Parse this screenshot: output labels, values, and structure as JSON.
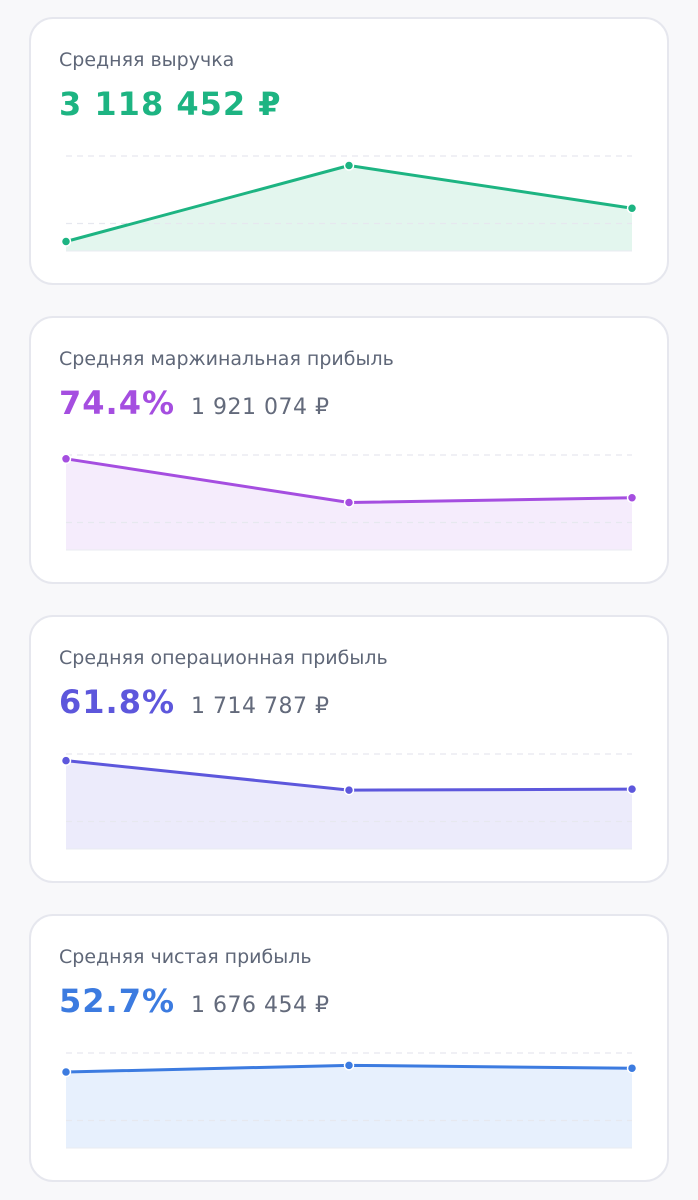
{
  "cards": [
    {
      "title": "Средняя выручка",
      "main_value": "3 118 452 ₽",
      "secondary_value": "",
      "color": "#1db482",
      "fill": "#e3f6ee",
      "trend": [
        0.1,
        0.9,
        0.45
      ]
    },
    {
      "title": "Средняя маржинальная прибыль",
      "main_value": "74.4%",
      "secondary_value": "1 921 074 ₽",
      "color": "#a54ee0",
      "fill": "#f5ecfc",
      "trend": [
        0.96,
        0.5,
        0.55
      ]
    },
    {
      "title": "Средняя операционная прибыль",
      "main_value": "61.8%",
      "secondary_value": "1 714 787 ₽",
      "color": "#5d57dc",
      "fill": "#ecebfb",
      "trend": [
        0.93,
        0.62,
        0.63
      ]
    },
    {
      "title": "Средняя чистая прибыль",
      "main_value": "52.7%",
      "secondary_value": "1 676 454 ₽",
      "color": "#3c7be0",
      "fill": "#e7f0fd",
      "trend": [
        0.8,
        0.87,
        0.84
      ]
    }
  ]
}
